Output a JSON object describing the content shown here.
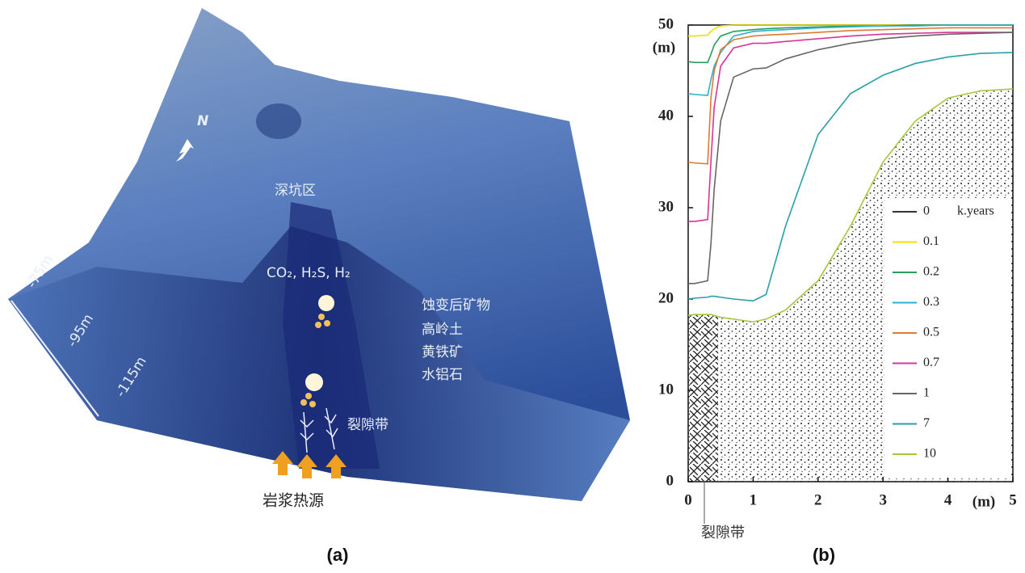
{
  "panel_a": {
    "label": "(a)",
    "pit": "深坑区",
    "gases": "CO₂, H₂S, H₂",
    "minerals_title": "蚀变后矿物",
    "minerals": [
      "高岭土",
      "黄铁矿",
      "水铝石"
    ],
    "fracture": "裂隙带",
    "heat_source": "岩浆热源",
    "depths": [
      "-75m",
      "-95m",
      "-115m"
    ],
    "north": "N"
  },
  "panel_b_label": "(b)",
  "chart_data": {
    "type": "line",
    "xlabel": "(m)",
    "ylabel": "(m)",
    "annotation": "裂隙带",
    "legend_title": "k.years",
    "legend": "lower right",
    "x": [
      0,
      0.1,
      0.3,
      0.35,
      0.4,
      0.5,
      0.7,
      1,
      1.2,
      1.5,
      2,
      2.5,
      3,
      3.5,
      4,
      4.5,
      5
    ],
    "xlim": [
      0,
      5
    ],
    "xticks": [
      0,
      1,
      2,
      3,
      4,
      5
    ],
    "ylim": [
      0,
      50
    ],
    "yticks": [
      0,
      10,
      20,
      30,
      40,
      50
    ],
    "series": [
      {
        "name": "0",
        "color": "#333333",
        "values": [
          50,
          50,
          50,
          50,
          50,
          50,
          50,
          50,
          50,
          50,
          50,
          50,
          50,
          50,
          50,
          50,
          50
        ]
      },
      {
        "name": "0.1",
        "color": "#f0e000",
        "values": [
          48.8,
          48.8,
          48.9,
          49.3,
          49.6,
          49.9,
          50,
          50,
          50,
          50,
          50,
          50,
          50,
          50,
          50,
          50,
          50
        ]
      },
      {
        "name": "0.2",
        "color": "#2a9d5c",
        "values": [
          46,
          45.9,
          45.9,
          46.8,
          47.8,
          48.8,
          49.3,
          49.5,
          49.6,
          49.7,
          49.8,
          49.9,
          49.9,
          50,
          50,
          50,
          50
        ]
      },
      {
        "name": "0.3",
        "color": "#2ab0d0",
        "values": [
          42.5,
          42.4,
          42.3,
          44,
          45.5,
          47,
          48.8,
          49.3,
          49.4,
          49.5,
          49.7,
          49.8,
          49.9,
          49.9,
          50,
          50,
          50
        ]
      },
      {
        "name": "0.5",
        "color": "#e07a30",
        "values": [
          35,
          34.9,
          34.8,
          42,
          45,
          47.3,
          48.4,
          48.8,
          48.9,
          49,
          49.2,
          49.4,
          49.5,
          49.6,
          49.7,
          49.7,
          49.7
        ]
      },
      {
        "name": "0.7",
        "color": "#d6359a",
        "values": [
          28.5,
          28.5,
          28.7,
          35,
          41,
          45.5,
          47.5,
          48,
          48,
          48.2,
          48.5,
          48.8,
          49,
          49.1,
          49.2,
          49.2,
          49.2
        ]
      },
      {
        "name": "1",
        "color": "#666666",
        "values": [
          21.7,
          21.7,
          22,
          26,
          32,
          39.5,
          44.3,
          45.2,
          45.3,
          46.3,
          47.3,
          48,
          48.5,
          48.8,
          49,
          49.1,
          49.2
        ]
      },
      {
        "name": "7",
        "color": "#2a9fa8",
        "values": [
          20,
          20.1,
          20.2,
          20.3,
          20.3,
          20.2,
          20,
          19.8,
          20.5,
          28,
          38,
          42.5,
          44.5,
          45.8,
          46.5,
          46.9,
          47
        ]
      },
      {
        "name": "10",
        "color": "#a5c83a",
        "values": [
          18.2,
          18.3,
          18.3,
          18.3,
          18.2,
          18,
          17.8,
          17.5,
          17.8,
          18.8,
          22,
          28,
          35,
          39.5,
          42,
          42.8,
          43
        ]
      }
    ]
  }
}
